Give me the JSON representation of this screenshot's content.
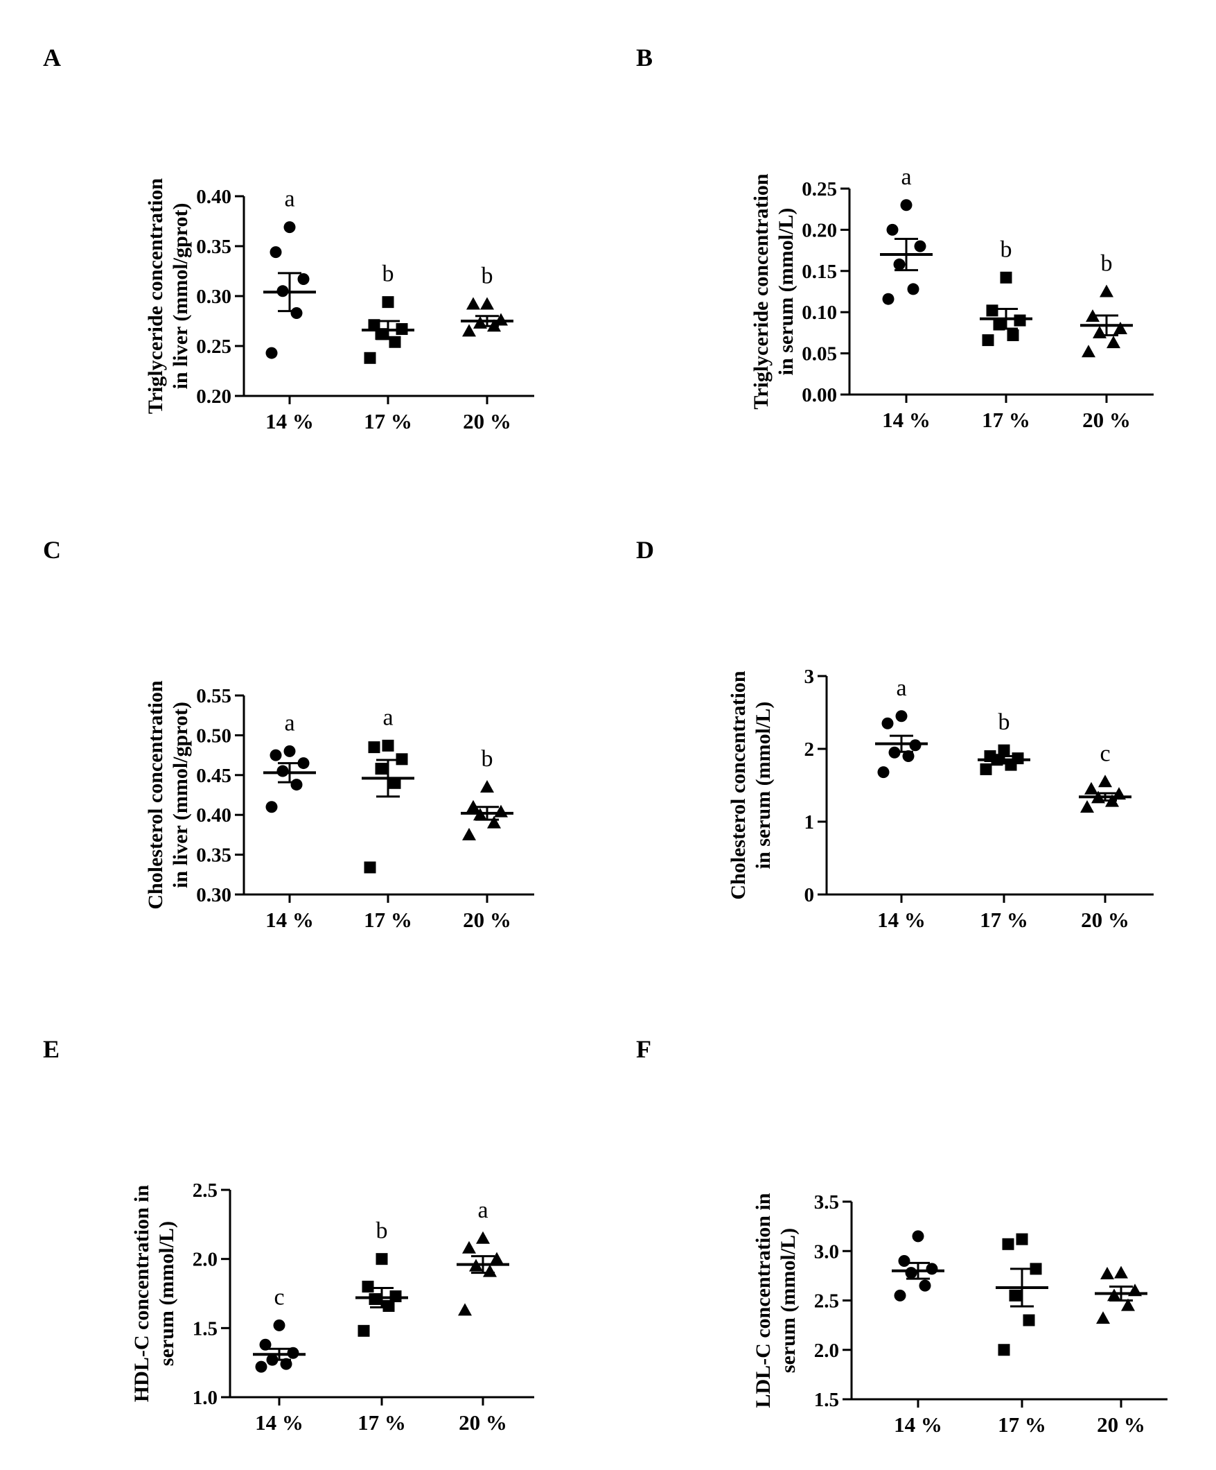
{
  "chart_data": [
    {
      "panel": "A",
      "type": "scatter",
      "ylabel_lines": [
        "Triglyceride concentration",
        "in liver (mmol/gprot)"
      ],
      "categories": [
        "14 %",
        "17 %",
        "20 %"
      ],
      "markers": [
        "circle",
        "square",
        "triangle"
      ],
      "ylim": [
        0.2,
        0.4
      ],
      "ticks": [
        "0.20",
        "0.25",
        "0.30",
        "0.35",
        "0.40"
      ],
      "means": [
        0.304,
        0.266,
        0.275
      ],
      "sems": [
        0.019,
        0.009,
        0.005
      ],
      "points": [
        [
          0.369,
          0.344,
          0.317,
          0.305,
          0.283,
          0.243
        ],
        [
          0.294,
          0.271,
          0.267,
          0.262,
          0.254,
          0.238
        ],
        [
          0.292,
          0.292,
          0.276,
          0.273,
          0.27,
          0.265
        ]
      ],
      "letters": [
        "a",
        "b",
        "b"
      ]
    },
    {
      "panel": "B",
      "type": "scatter",
      "ylabel_lines": [
        "Triglyceride concentration",
        "in serum (mmol/L)"
      ],
      "categories": [
        "14 %",
        "17 %",
        "20 %"
      ],
      "markers": [
        "circle",
        "square",
        "triangle"
      ],
      "ylim": [
        0.0,
        0.25
      ],
      "ticks": [
        "0.00",
        "0.05",
        "0.10",
        "0.15",
        "0.20",
        "0.25"
      ],
      "means": [
        0.17,
        0.092,
        0.084
      ],
      "sems": [
        0.019,
        0.012,
        0.012
      ],
      "points": [
        [
          0.23,
          0.2,
          0.18,
          0.158,
          0.128,
          0.116
        ],
        [
          0.142,
          0.102,
          0.09,
          0.085,
          0.072,
          0.066
        ],
        [
          0.125,
          0.095,
          0.08,
          0.075,
          0.063,
          0.052
        ]
      ],
      "letters": [
        "a",
        "b",
        "b"
      ]
    },
    {
      "panel": "C",
      "type": "scatter",
      "ylabel_lines": [
        "Cholesterol concentration",
        "in liver (mmol/gprot)"
      ],
      "categories": [
        "14 %",
        "17 %",
        "20 %"
      ],
      "markers": [
        "circle",
        "square",
        "triangle"
      ],
      "ylim": [
        0.3,
        0.55
      ],
      "ticks": [
        "0.30",
        "0.35",
        "0.40",
        "0.45",
        "0.50",
        "0.55"
      ],
      "means": [
        0.453,
        0.446,
        0.402
      ],
      "sems": [
        0.012,
        0.023,
        0.008
      ],
      "points": [
        [
          0.48,
          0.475,
          0.465,
          0.455,
          0.438,
          0.41
        ],
        [
          0.487,
          0.485,
          0.47,
          0.458,
          0.44,
          0.334
        ],
        [
          0.435,
          0.41,
          0.404,
          0.4,
          0.39,
          0.375
        ]
      ],
      "letters": [
        "a",
        "a",
        "b"
      ]
    },
    {
      "panel": "D",
      "type": "scatter",
      "ylabel_lines": [
        "Cholesterol concentration",
        "in serum (mmol/L)"
      ],
      "categories": [
        "14 %",
        "17 %",
        "20 %"
      ],
      "markers": [
        "circle",
        "square",
        "triangle"
      ],
      "ylim": [
        0,
        3
      ],
      "ticks": [
        "0",
        "1",
        "2",
        "3"
      ],
      "means": [
        2.07,
        1.85,
        1.34
      ],
      "sems": [
        0.11,
        0.05,
        0.05
      ],
      "points": [
        [
          2.45,
          2.35,
          2.05,
          1.95,
          1.9,
          1.68
        ],
        [
          1.98,
          1.9,
          1.87,
          1.85,
          1.78,
          1.72
        ],
        [
          1.55,
          1.45,
          1.38,
          1.33,
          1.28,
          1.2
        ]
      ],
      "letters": [
        "a",
        "b",
        "c"
      ]
    },
    {
      "panel": "E",
      "type": "scatter",
      "ylabel_lines": [
        "HDL-C concentration in",
        "serum (mmol/L)"
      ],
      "categories": [
        "14 %",
        "17 %",
        "20 %"
      ],
      "markers": [
        "circle",
        "square",
        "triangle"
      ],
      "ylim": [
        1.0,
        2.5
      ],
      "ticks": [
        "1.0",
        "1.5",
        "2.0",
        "2.5"
      ],
      "means": [
        1.31,
        1.72,
        1.96
      ],
      "sems": [
        0.04,
        0.07,
        0.06
      ],
      "points": [
        [
          1.52,
          1.38,
          1.32,
          1.27,
          1.24,
          1.22
        ],
        [
          2.0,
          1.8,
          1.73,
          1.71,
          1.66,
          1.48
        ],
        [
          2.15,
          2.08,
          2.0,
          1.95,
          1.91,
          1.63
        ]
      ],
      "letters": [
        "c",
        "b",
        "a"
      ]
    },
    {
      "panel": "F",
      "type": "scatter",
      "ylabel_lines": [
        "LDL-C concentration in",
        "serum (mmol/L)"
      ],
      "categories": [
        "14 %",
        "17 %",
        "20 %"
      ],
      "markers": [
        "circle",
        "square",
        "triangle"
      ],
      "ylim": [
        1.5,
        3.5
      ],
      "ticks": [
        "1.5",
        "2.0",
        "2.5",
        "3.0",
        "3.5"
      ],
      "means": [
        2.8,
        2.63,
        2.57
      ],
      "sems": [
        0.08,
        0.19,
        0.07
      ],
      "points": [
        [
          3.15,
          2.9,
          2.82,
          2.78,
          2.65,
          2.55
        ],
        [
          3.12,
          3.07,
          2.82,
          2.55,
          2.3,
          2.0
        ],
        [
          2.78,
          2.77,
          2.6,
          2.55,
          2.45,
          2.32
        ]
      ],
      "letters": [
        "",
        "",
        ""
      ]
    }
  ]
}
